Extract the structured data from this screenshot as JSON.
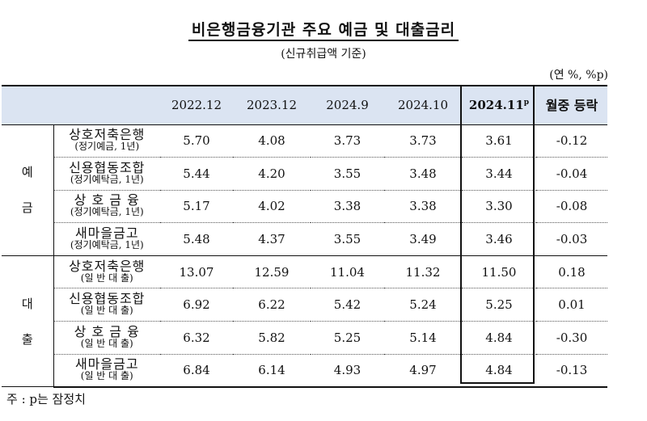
{
  "title": "비은행금융기관 주요 예금 및 대출금리",
  "subtitle": "(신규취급액 기준)",
  "unit": "(연 %, %p)",
  "columns": [
    "2022.12",
    "2023.12",
    "2024.9",
    "2024.10",
    "2024.11",
    "월중 등락"
  ],
  "latest_superscript": "p",
  "groups": [
    {
      "label_chars": [
        "예",
        "금"
      ],
      "rows": [
        {
          "name": "상호저축은행",
          "sub": "(정기예금, 1년)",
          "values": [
            "5.70",
            "4.08",
            "3.73",
            "3.73",
            "3.61",
            "-0.12"
          ]
        },
        {
          "name": "신용협동조합",
          "sub": "(정기예탁금, 1년)",
          "values": [
            "5.44",
            "4.20",
            "3.55",
            "3.48",
            "3.44",
            "-0.04"
          ]
        },
        {
          "name": "상 호 금 융",
          "sub": "(정기예탁금, 1년)",
          "values": [
            "5.17",
            "4.02",
            "3.38",
            "3.38",
            "3.30",
            "-0.08"
          ]
        },
        {
          "name": "새마을금고",
          "sub": "(정기예탁금, 1년)",
          "values": [
            "5.48",
            "4.37",
            "3.55",
            "3.49",
            "3.46",
            "-0.03"
          ]
        }
      ]
    },
    {
      "label_chars": [
        "대",
        "출"
      ],
      "rows": [
        {
          "name": "상호저축은행",
          "sub": "(일 반 대 출)",
          "values": [
            "13.07",
            "12.59",
            "11.04",
            "11.32",
            "11.50",
            "0.18"
          ]
        },
        {
          "name": "신용협동조합",
          "sub": "(일 반 대 출)",
          "values": [
            "6.92",
            "6.22",
            "5.42",
            "5.24",
            "5.25",
            "0.01"
          ]
        },
        {
          "name": "상 호 금 융",
          "sub": "(일 반 대 출)",
          "values": [
            "6.32",
            "5.82",
            "5.25",
            "5.14",
            "4.84",
            "-0.30"
          ]
        },
        {
          "name": "새마을금고",
          "sub": "(일 반 대 출)",
          "values": [
            "6.84",
            "6.14",
            "4.93",
            "4.97",
            "4.84",
            "-0.13"
          ]
        }
      ]
    }
  ],
  "note": "주 : p는 잠정치"
}
